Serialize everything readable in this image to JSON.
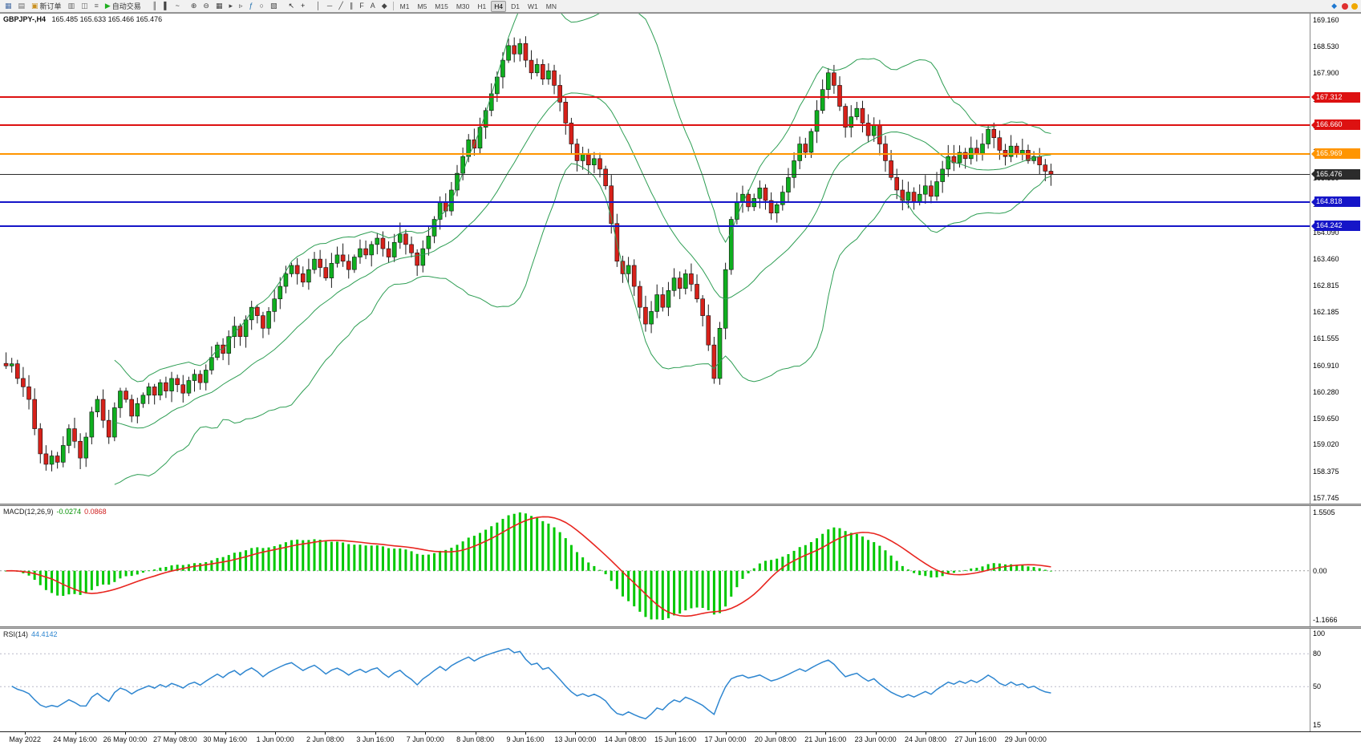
{
  "toolbar": {
    "buttons": [
      {
        "name": "menu-window-icon",
        "glyph": "▦",
        "color": "#4a6fa5"
      },
      {
        "name": "chart-list-icon",
        "glyph": "▤",
        "color": "#666"
      },
      {
        "name": "new-order-button",
        "glyph": "▣",
        "color": "#c98f1e",
        "label": "新订单"
      },
      {
        "name": "market-watch-icon",
        "glyph": "▥",
        "color": "#666"
      },
      {
        "name": "data-window-icon",
        "glyph": "◫",
        "color": "#666"
      },
      {
        "name": "navigator-icon",
        "glyph": "≡",
        "color": "#666"
      },
      {
        "name": "autotrade-button",
        "glyph": "▶",
        "color": "#1fae1f",
        "label": "自动交易"
      },
      {
        "sep": true
      },
      {
        "name": "bars-chart-icon",
        "glyph": "║",
        "color": "#444"
      },
      {
        "name": "candles-chart-icon",
        "glyph": "▌",
        "color": "#444"
      },
      {
        "name": "line-chart-icon",
        "glyph": "~",
        "color": "#444"
      },
      {
        "sep": true
      },
      {
        "name": "zoom-in-icon",
        "glyph": "⊕",
        "color": "#444"
      },
      {
        "name": "zoom-out-icon",
        "glyph": "⊖",
        "color": "#444"
      },
      {
        "name": "tile-windows-icon",
        "glyph": "▦",
        "color": "#444"
      },
      {
        "name": "auto-scroll-icon",
        "glyph": "▸",
        "color": "#444"
      },
      {
        "name": "chart-shift-icon",
        "glyph": "▹",
        "color": "#444"
      },
      {
        "name": "indicators-icon",
        "glyph": "ƒ",
        "color": "#1f6fae"
      },
      {
        "name": "periods-icon",
        "glyph": "○",
        "color": "#444"
      },
      {
        "name": "templates-icon",
        "glyph": "▧",
        "color": "#444"
      },
      {
        "sep": true
      },
      {
        "name": "cursor-icon",
        "glyph": "↖",
        "color": "#222"
      },
      {
        "name": "crosshair-icon",
        "glyph": "+",
        "color": "#222"
      },
      {
        "sep": true
      },
      {
        "name": "vertical-line-icon",
        "glyph": "│",
        "color": "#444"
      },
      {
        "name": "horizontal-line-icon",
        "glyph": "─",
        "color": "#444"
      },
      {
        "name": "trendline-icon",
        "glyph": "╱",
        "color": "#444"
      },
      {
        "name": "channel-icon",
        "glyph": "∥",
        "color": "#444"
      },
      {
        "name": "fibonacci-icon",
        "glyph": "F",
        "color": "#444"
      },
      {
        "name": "text-icon",
        "glyph": "A",
        "color": "#444"
      },
      {
        "name": "arrow-tools-icon",
        "glyph": "◆",
        "color": "#444"
      }
    ],
    "timeframes": [
      "M1",
      "M5",
      "M15",
      "M30",
      "H1",
      "H4",
      "D1",
      "W1",
      "MN"
    ],
    "active_timeframe": "H4",
    "right_icons": [
      {
        "name": "community-icon",
        "glyph": "◆",
        "color": "#1e78d0"
      },
      {
        "name": "status-alert-icon",
        "dot": "#e03030"
      },
      {
        "name": "status-warning-icon",
        "dot": "#f0a800"
      }
    ]
  },
  "chart": {
    "symbol_label": "GBPJPY-,H4",
    "ohlc_label": "165.485 165.633 165.466 165.476",
    "price_min": 157.745,
    "price_max": 169.16,
    "price_axis": [
      "169.160",
      "168.530",
      "167.900",
      "167.270",
      "166.640",
      "166.010",
      "165.380",
      "164.750",
      "164.090",
      "163.460",
      "162.815",
      "162.185",
      "161.555",
      "160.910",
      "160.280",
      "159.650",
      "159.020",
      "158.375",
      "157.745"
    ],
    "levels": [
      {
        "price": 167.312,
        "label": "167.312",
        "color": "#dd1111",
        "width": 2
      },
      {
        "price": 166.66,
        "label": "166.660",
        "color": "#dd1111",
        "width": 2
      },
      {
        "price": 165.969,
        "label": "165.969",
        "color": "#ff9500",
        "width": 2
      },
      {
        "price": 165.476,
        "label": "165.476",
        "color": "#2b2b2b",
        "width": 1
      },
      {
        "price": 164.818,
        "label": "164.818",
        "color": "#1515c8",
        "width": 2
      },
      {
        "price": 164.242,
        "label": "164.242",
        "color": "#1515c8",
        "width": 2
      }
    ],
    "time_axis": [
      "May 2022",
      "24 May 16:00",
      "26 May 00:00",
      "27 May 08:00",
      "30 May 16:00",
      "1 Jun 00:00",
      "2 Jun 08:00",
      "3 Jun 16:00",
      "7 Jun 00:00",
      "8 Jun 08:00",
      "9 Jun 16:00",
      "13 Jun 00:00",
      "14 Jun 08:00",
      "15 Jun 16:00",
      "17 Jun 00:00",
      "20 Jun 08:00",
      "21 Jun 16:00",
      "23 Jun 00:00",
      "24 Jun 08:00",
      "27 Jun 16:00",
      "29 Jun 00:00"
    ]
  },
  "macd": {
    "name": "MACD(12,26,9)",
    "value1": "-0.0274",
    "value2": "0.0868",
    "axis_top": "1.5505",
    "axis_zero": "0.00",
    "axis_bottom": "-1.1666"
  },
  "rsi": {
    "name": "RSI(14)",
    "value": "44.4142",
    "axis": [
      "100",
      "80",
      "50",
      "15"
    ],
    "max": 100,
    "min": 15,
    "levels": [
      80,
      50
    ]
  },
  "chart_data": {
    "type": "candlestick",
    "symbol": "GBPJPY-",
    "timeframe": "H4",
    "current_ohlc": {
      "open": 165.485,
      "high": 165.633,
      "low": 165.466,
      "close": 165.476
    },
    "price_range": [
      157.745,
      169.16
    ],
    "closes": [
      160.9,
      160.95,
      160.6,
      160.4,
      160.1,
      159.4,
      158.8,
      158.55,
      158.75,
      158.6,
      159.0,
      159.4,
      159.1,
      158.7,
      159.2,
      159.8,
      160.1,
      159.6,
      159.2,
      159.9,
      160.3,
      160.1,
      159.7,
      160.0,
      160.2,
      160.4,
      160.2,
      160.5,
      160.3,
      160.6,
      160.45,
      160.25,
      160.55,
      160.7,
      160.5,
      160.8,
      161.1,
      161.4,
      161.2,
      161.6,
      161.85,
      161.6,
      162.0,
      162.3,
      162.1,
      161.8,
      162.2,
      162.5,
      162.8,
      163.1,
      163.3,
      163.1,
      162.9,
      163.2,
      163.45,
      163.25,
      163.0,
      163.35,
      163.55,
      163.4,
      163.2,
      163.5,
      163.7,
      163.55,
      163.8,
      163.95,
      163.7,
      163.5,
      163.85,
      164.05,
      163.8,
      163.6,
      163.3,
      163.7,
      164.0,
      164.4,
      164.8,
      164.6,
      165.1,
      165.5,
      165.9,
      166.3,
      166.1,
      166.6,
      167.0,
      167.4,
      167.8,
      168.2,
      168.55,
      168.35,
      168.6,
      168.2,
      167.9,
      168.1,
      167.75,
      167.95,
      167.6,
      167.2,
      166.7,
      166.2,
      165.8,
      165.95,
      165.7,
      165.85,
      165.6,
      165.2,
      164.3,
      163.4,
      163.1,
      163.3,
      162.8,
      162.3,
      161.9,
      162.2,
      162.6,
      162.3,
      162.7,
      163.0,
      162.75,
      163.1,
      162.85,
      162.5,
      162.1,
      161.4,
      160.6,
      161.8,
      163.2,
      164.4,
      164.8,
      165.0,
      164.7,
      164.9,
      165.15,
      164.85,
      164.55,
      164.75,
      165.05,
      165.4,
      165.8,
      166.2,
      166.0,
      166.5,
      167.0,
      167.5,
      167.9,
      167.6,
      167.1,
      166.6,
      166.85,
      167.05,
      166.7,
      166.4,
      166.65,
      166.2,
      165.8,
      165.4,
      165.1,
      164.85,
      165.05,
      164.8,
      165.0,
      165.2,
      164.95,
      165.3,
      165.6,
      165.9,
      165.75,
      166.0,
      165.85,
      166.1,
      165.95,
      166.2,
      166.55,
      166.35,
      166.05,
      165.9,
      166.15,
      165.95,
      166.05,
      165.8,
      165.9,
      165.7,
      165.55,
      165.48
    ],
    "bollinger": {
      "period": 20,
      "deviation": 2,
      "color": "#2e9e54"
    },
    "macd": {
      "fast": 12,
      "slow": 26,
      "signal": 9,
      "current_values": [
        -0.0274,
        0.0868
      ],
      "scale": [
        -1.1666,
        1.5505
      ]
    },
    "rsi": {
      "period": 14,
      "current_value": 44.4142,
      "scale": [
        15,
        100
      ]
    }
  }
}
